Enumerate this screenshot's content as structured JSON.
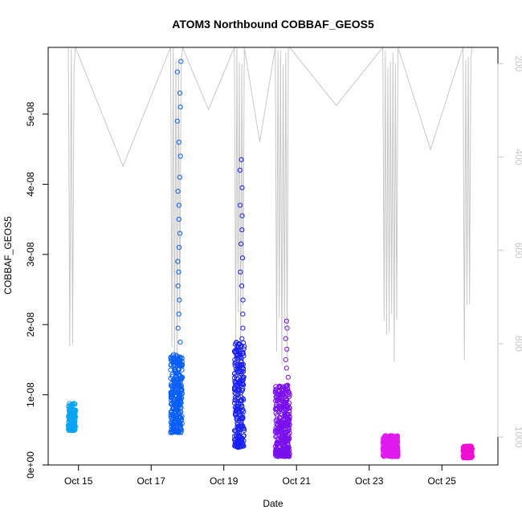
{
  "chart_data": {
    "type": "scatter",
    "title": "ATOM3 Northbound COBBAF_GEOS5",
    "xlabel": "Date",
    "ylabel": "COBBAF_GEOS5",
    "grid": false,
    "legend": "none",
    "x_axis": {
      "unit": "date (2017-10-dd)",
      "range": [
        "2017-10-14T04:00",
        "2017-10-26T13:00"
      ],
      "ticks": [
        {
          "value": "2017-10-15",
          "label": "Oct 15"
        },
        {
          "value": "2017-10-17",
          "label": "Oct 17"
        },
        {
          "value": "2017-10-19",
          "label": "Oct 19"
        },
        {
          "value": "2017-10-21",
          "label": "Oct 21"
        },
        {
          "value": "2017-10-23",
          "label": "Oct 23"
        },
        {
          "value": "2017-10-25",
          "label": "Oct 25"
        }
      ]
    },
    "y_axis": {
      "range": [
        0,
        5.95e-08
      ],
      "ticks": [
        {
          "value": 0,
          "label": "0e+00"
        },
        {
          "value": 1e-08,
          "label": "1e-08"
        },
        {
          "value": 2e-08,
          "label": "2e-08"
        },
        {
          "value": 3e-08,
          "label": "3e-08"
        },
        {
          "value": 4e-08,
          "label": "4e-08"
        },
        {
          "value": 5e-08,
          "label": "5e-08"
        }
      ]
    },
    "y2_axis": {
      "description": "pressure (reversed)",
      "range": [
        1060,
        165
      ],
      "ticks": [
        {
          "value": 200,
          "label": "200"
        },
        {
          "value": 400,
          "label": "400"
        },
        {
          "value": 600,
          "label": "600"
        },
        {
          "value": 800,
          "label": "800"
        },
        {
          "value": 1000,
          "label": "1000"
        }
      ],
      "line_color": "#c8c8c8"
    },
    "flights": [
      {
        "start": "2017-10-14T17:20",
        "end": "2017-10-14T22:00",
        "color": "#0aa4f2",
        "y_min": 4.9e-09,
        "y_max": 8.8e-09,
        "outliers": []
      },
      {
        "start": "2017-10-17T12:50",
        "end": "2017-10-17T20:40",
        "color": "#0a5ef5",
        "y_min": 4.6e-09,
        "y_max": 1.58e-08,
        "outliers": [
          5.75e-08,
          5.6e-08,
          5.3e-08,
          5.1e-08,
          4.9e-08,
          4.6e-08,
          4.4e-08,
          4.1e-08,
          3.9e-08,
          3.7e-08,
          3.5e-08,
          3.3e-08,
          3.1e-08,
          2.9e-08,
          2.75e-08,
          2.55e-08,
          2.35e-08,
          2.15e-08,
          1.95e-08,
          1.75e-08
        ]
      },
      {
        "start": "2017-10-19T07:00",
        "end": "2017-10-19T13:30",
        "color": "#1a20f2",
        "y_min": 2.5e-09,
        "y_max": 1.75e-08,
        "outliers": [
          4.35e-08,
          4.2e-08,
          3.95e-08,
          3.7e-08,
          3.55e-08,
          3.35e-08,
          3.15e-08,
          2.95e-08,
          2.75e-08,
          2.55e-08,
          2.35e-08,
          2.15e-08,
          1.95e-08,
          1.8e-08
        ]
      },
      {
        "start": "2017-10-20T10:00",
        "end": "2017-10-20T19:30",
        "color": "#7a10ee",
        "y_min": 1.2e-09,
        "y_max": 1.15e-08,
        "outliers": [
          2.05e-08,
          1.95e-08,
          1.8e-08,
          1.65e-08,
          1.5e-08,
          1.38e-08,
          1.25e-08
        ]
      },
      {
        "start": "2017-10-23T09:00",
        "end": "2017-10-23T19:00",
        "color": "#e01aef",
        "y_min": 1.2e-09,
        "y_max": 4.2e-09,
        "outliers": []
      },
      {
        "start": "2017-10-25T14:00",
        "end": "2017-10-25T20:00",
        "color": "#ef10d3",
        "y_min": 1e-09,
        "y_max": 2.7e-09,
        "outliers": []
      }
    ]
  }
}
